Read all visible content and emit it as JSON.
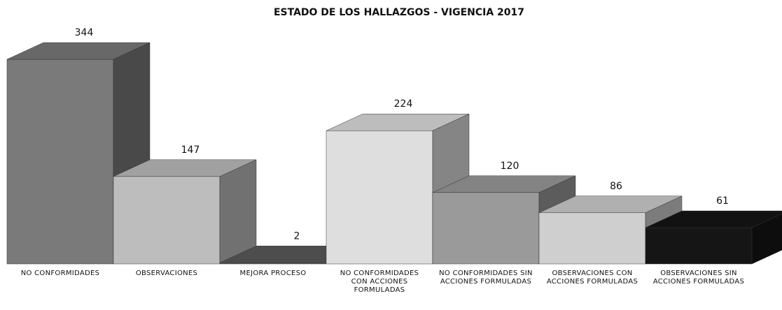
{
  "chart_data": {
    "type": "bar3d",
    "title": "ESTADO DE LOS HALLAZGOS - VIGENCIA 2017",
    "categories": [
      "NO CONFORMIDADES",
      "OBSERVACIONES",
      "MEJORA PROCESO",
      "NO CONFORMIDADES CON ACCIONES FORMULADAS",
      "NO CONFORMIDADES SIN ACCIONES FORMULADAS",
      "OBSERVACIONES CON ACCIONES FORMULADAS",
      "OBSERVACIONES SIN ACCIONES FORMULADAS"
    ],
    "values": [
      344,
      147,
      2,
      224,
      120,
      86,
      61
    ],
    "colors": [
      "#7a7a7a",
      "#bdbdbd",
      "#5a5a5a",
      "#dedede",
      "#9a9a9a",
      "#cfcfcf",
      "#151515"
    ]
  }
}
